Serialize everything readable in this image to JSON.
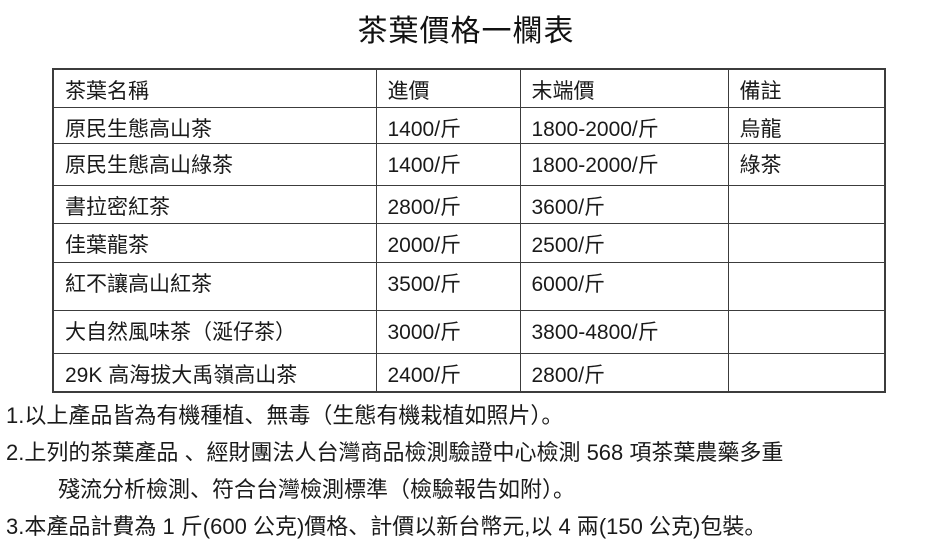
{
  "title": "茶葉價格一欄表",
  "table": {
    "headers": [
      "茶葉名稱",
      "進價",
      "末端價",
      "備註"
    ],
    "rows": [
      [
        "原民生態高山茶",
        "1400/斤",
        "1800-2000/斤",
        "烏龍"
      ],
      [
        "原民生態高山綠茶",
        "1400/斤",
        "1800-2000/斤",
        "綠茶"
      ],
      [
        "書拉密紅茶",
        "2800/斤",
        "3600/斤",
        ""
      ],
      [
        "佳葉龍茶",
        "2000/斤",
        "2500/斤",
        ""
      ],
      [
        "紅不讓高山紅茶",
        "3500/斤",
        "6000/斤",
        ""
      ],
      [
        "大自然風味茶（涎仔茶）",
        "3000/斤",
        "3800-4800/斤",
        ""
      ],
      [
        "29K 高海拔大禹嶺高山茶",
        "2400/斤",
        "2800/斤",
        ""
      ]
    ]
  },
  "notes": [
    "1.以上產品皆為有機種植、無毒（生態有機栽植如照片）。",
    "2.上列的茶葉產品 、經財團法人台灣商品檢測驗證中心檢測 568 項茶葉農藥多重",
    "殘流分析檢測、符合台灣檢測標準（檢驗報告如附）。",
    "3.本產品計費為 1 斤(600 公克)價格、計價以新台幣元,以 4 兩(150 公克)包裝。"
  ],
  "colors": {
    "text": "#1a1a1a",
    "border": "#3c3c3c",
    "background": "#ffffff"
  }
}
